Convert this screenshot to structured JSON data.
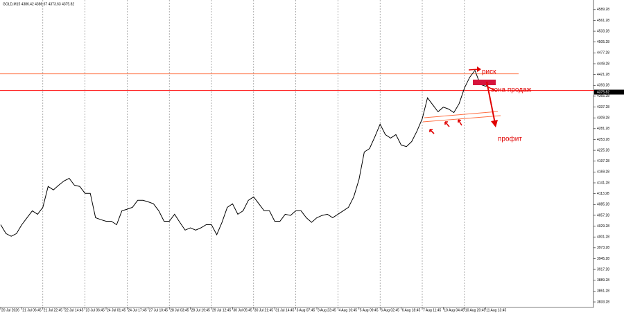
{
  "chart_data": {
    "type": "line",
    "title": "GOLD,M15  4386.42 4386.67 4373.63 4375.82",
    "categories": [
      "20 Jul 2026",
      null,
      null,
      null,
      "21 Jul 06:45",
      null,
      null,
      null,
      "21 Jul 22:45",
      null,
      null,
      null,
      "22 Jul 14:45",
      null,
      null,
      null,
      "23 Jul 06:45",
      null,
      null,
      null,
      "24 Jul 01:45",
      null,
      null,
      null,
      "24 Jul 17:45",
      null,
      null,
      null,
      "27 Jul 10:45",
      null,
      null,
      null,
      "28 Jul 03:45",
      null,
      null,
      null,
      "28 Jul 19:45",
      null,
      null,
      null,
      "29 Jul 12:45",
      null,
      null,
      null,
      "30 Jul 05:45",
      null,
      null,
      null,
      "30 Jul 21:45",
      null,
      null,
      null,
      "31 Jul 14:45",
      null,
      null,
      null,
      "3 Aug 07:45",
      null,
      null,
      null,
      "3 Aug 23:45",
      null,
      null,
      null,
      "4 Aug 16:45",
      null,
      null,
      null,
      "5 Aug 09:45",
      null,
      null,
      null,
      "6 Aug 02:45",
      null,
      null,
      null,
      "6 Aug 18:45",
      null,
      null,
      null,
      "7 Aug 11:45",
      null,
      null,
      null,
      "10 Aug 04:45",
      null,
      null,
      null,
      "10 Aug 20:45",
      null,
      null,
      null,
      "11 Aug 13:45",
      null
    ],
    "series": [
      {
        "name": "GOLD,M15",
        "color": "#000000",
        "values": [
          4033,
          4010,
          4003,
          4010,
          4033,
          4051,
          4069,
          4060,
          4078,
          4132,
          4123,
          4135,
          4146,
          4153,
          4135,
          4132,
          4114,
          4114,
          4051,
          4046,
          4042,
          4042,
          4033,
          4069,
          4073,
          4078,
          4096,
          4096,
          4092,
          4087,
          4069,
          4042,
          4042,
          4060,
          4039,
          4019,
          4025,
          4019,
          4025,
          4033,
          4033,
          4007,
          4039,
          4078,
          4087,
          4060,
          4069,
          4096,
          4105,
          4087,
          4069,
          4069,
          4042,
          4042,
          4060,
          4057,
          4069,
          4069,
          4051,
          4039,
          4051,
          4057,
          4060,
          4051,
          4060,
          4069,
          4078,
          4105,
          4150,
          4221,
          4230,
          4260,
          4293,
          4266,
          4257,
          4266,
          4239,
          4235,
          4248,
          4275,
          4307,
          4361,
          4343,
          4325,
          4337,
          4332,
          4323,
          4346,
          4386,
          4414,
          4432,
          4396,
          4391,
          4400
        ]
      }
    ],
    "ylim": [
      3819,
      4614
    ],
    "yticks": [
      3833.28,
      3861.28,
      3889.28,
      3917.28,
      3945.28,
      3973.28,
      4001.28,
      4029.28,
      4057.28,
      4085.28,
      4113.28,
      4141.28,
      4169.28,
      4197.28,
      4225.28,
      4253.28,
      4281.28,
      4309.28,
      4337.28,
      4365.28,
      4393.28,
      4421.28,
      4449.28,
      4477.28,
      4505.28,
      4533.28,
      4561.28,
      4589.28
    ],
    "current_price": 4375.82,
    "hlines": [
      {
        "value": 4423,
        "color": "#ff7043"
      },
      {
        "value": 4380,
        "color": "#ff0000"
      }
    ],
    "grid": true,
    "annotations": [
      "риск",
      "зона продаж",
      "профит"
    ]
  }
}
